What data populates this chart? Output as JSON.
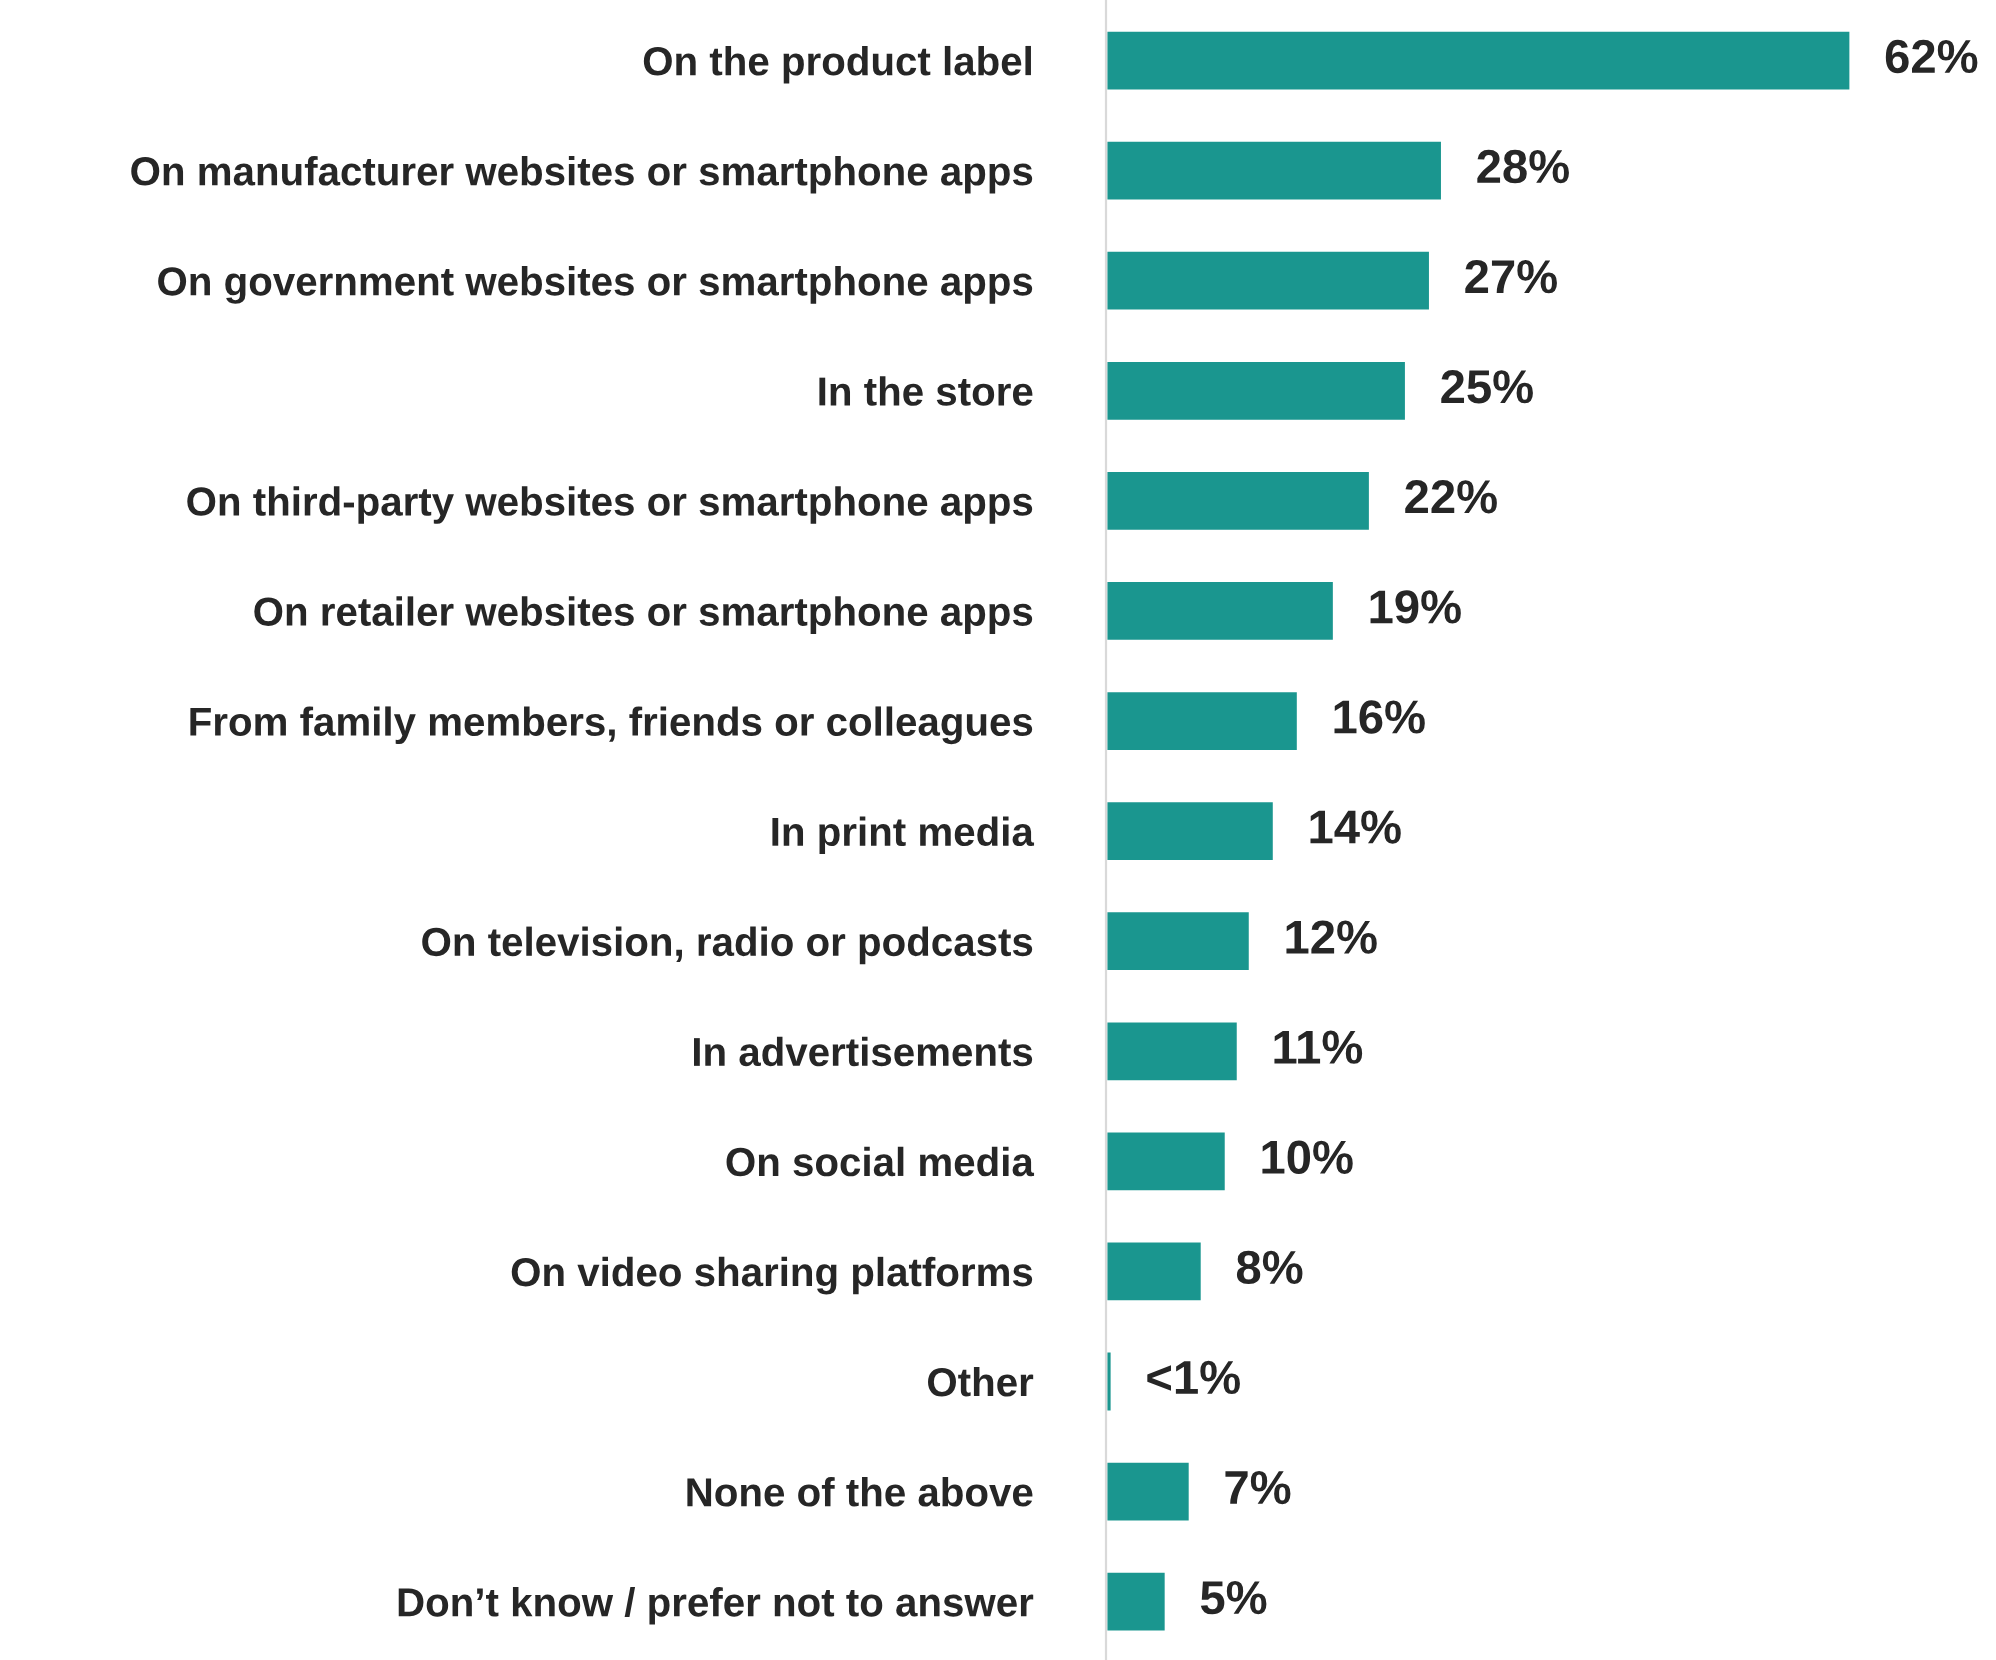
{
  "chart_data": {
    "type": "bar",
    "orientation": "horizontal",
    "categories": [
      "On the product label",
      "On manufacturer websites or smartphone apps",
      "On government websites or smartphone apps",
      "In the store",
      "On third-party websites or smartphone apps",
      "On retailer websites or smartphone apps",
      "From family members, friends or colleagues",
      "In print media",
      "On television, radio or podcasts",
      "In advertisements",
      "On social media",
      "On video sharing platforms",
      "Other",
      "None of the above",
      "Don’t know / prefer not to answer"
    ],
    "values": [
      62,
      28,
      27,
      25,
      22,
      19,
      16,
      14,
      12,
      11,
      10,
      8,
      0.5,
      7,
      5
    ],
    "value_labels": [
      "62%",
      "28%",
      "27%",
      "25%",
      "22%",
      "19%",
      "16%",
      "14%",
      "12%",
      "11%",
      "10%",
      "8%",
      "<1%",
      "7%",
      "5%"
    ],
    "color": "#1a968f",
    "tick_labels": "y",
    "grid": false,
    "legend": false
  }
}
